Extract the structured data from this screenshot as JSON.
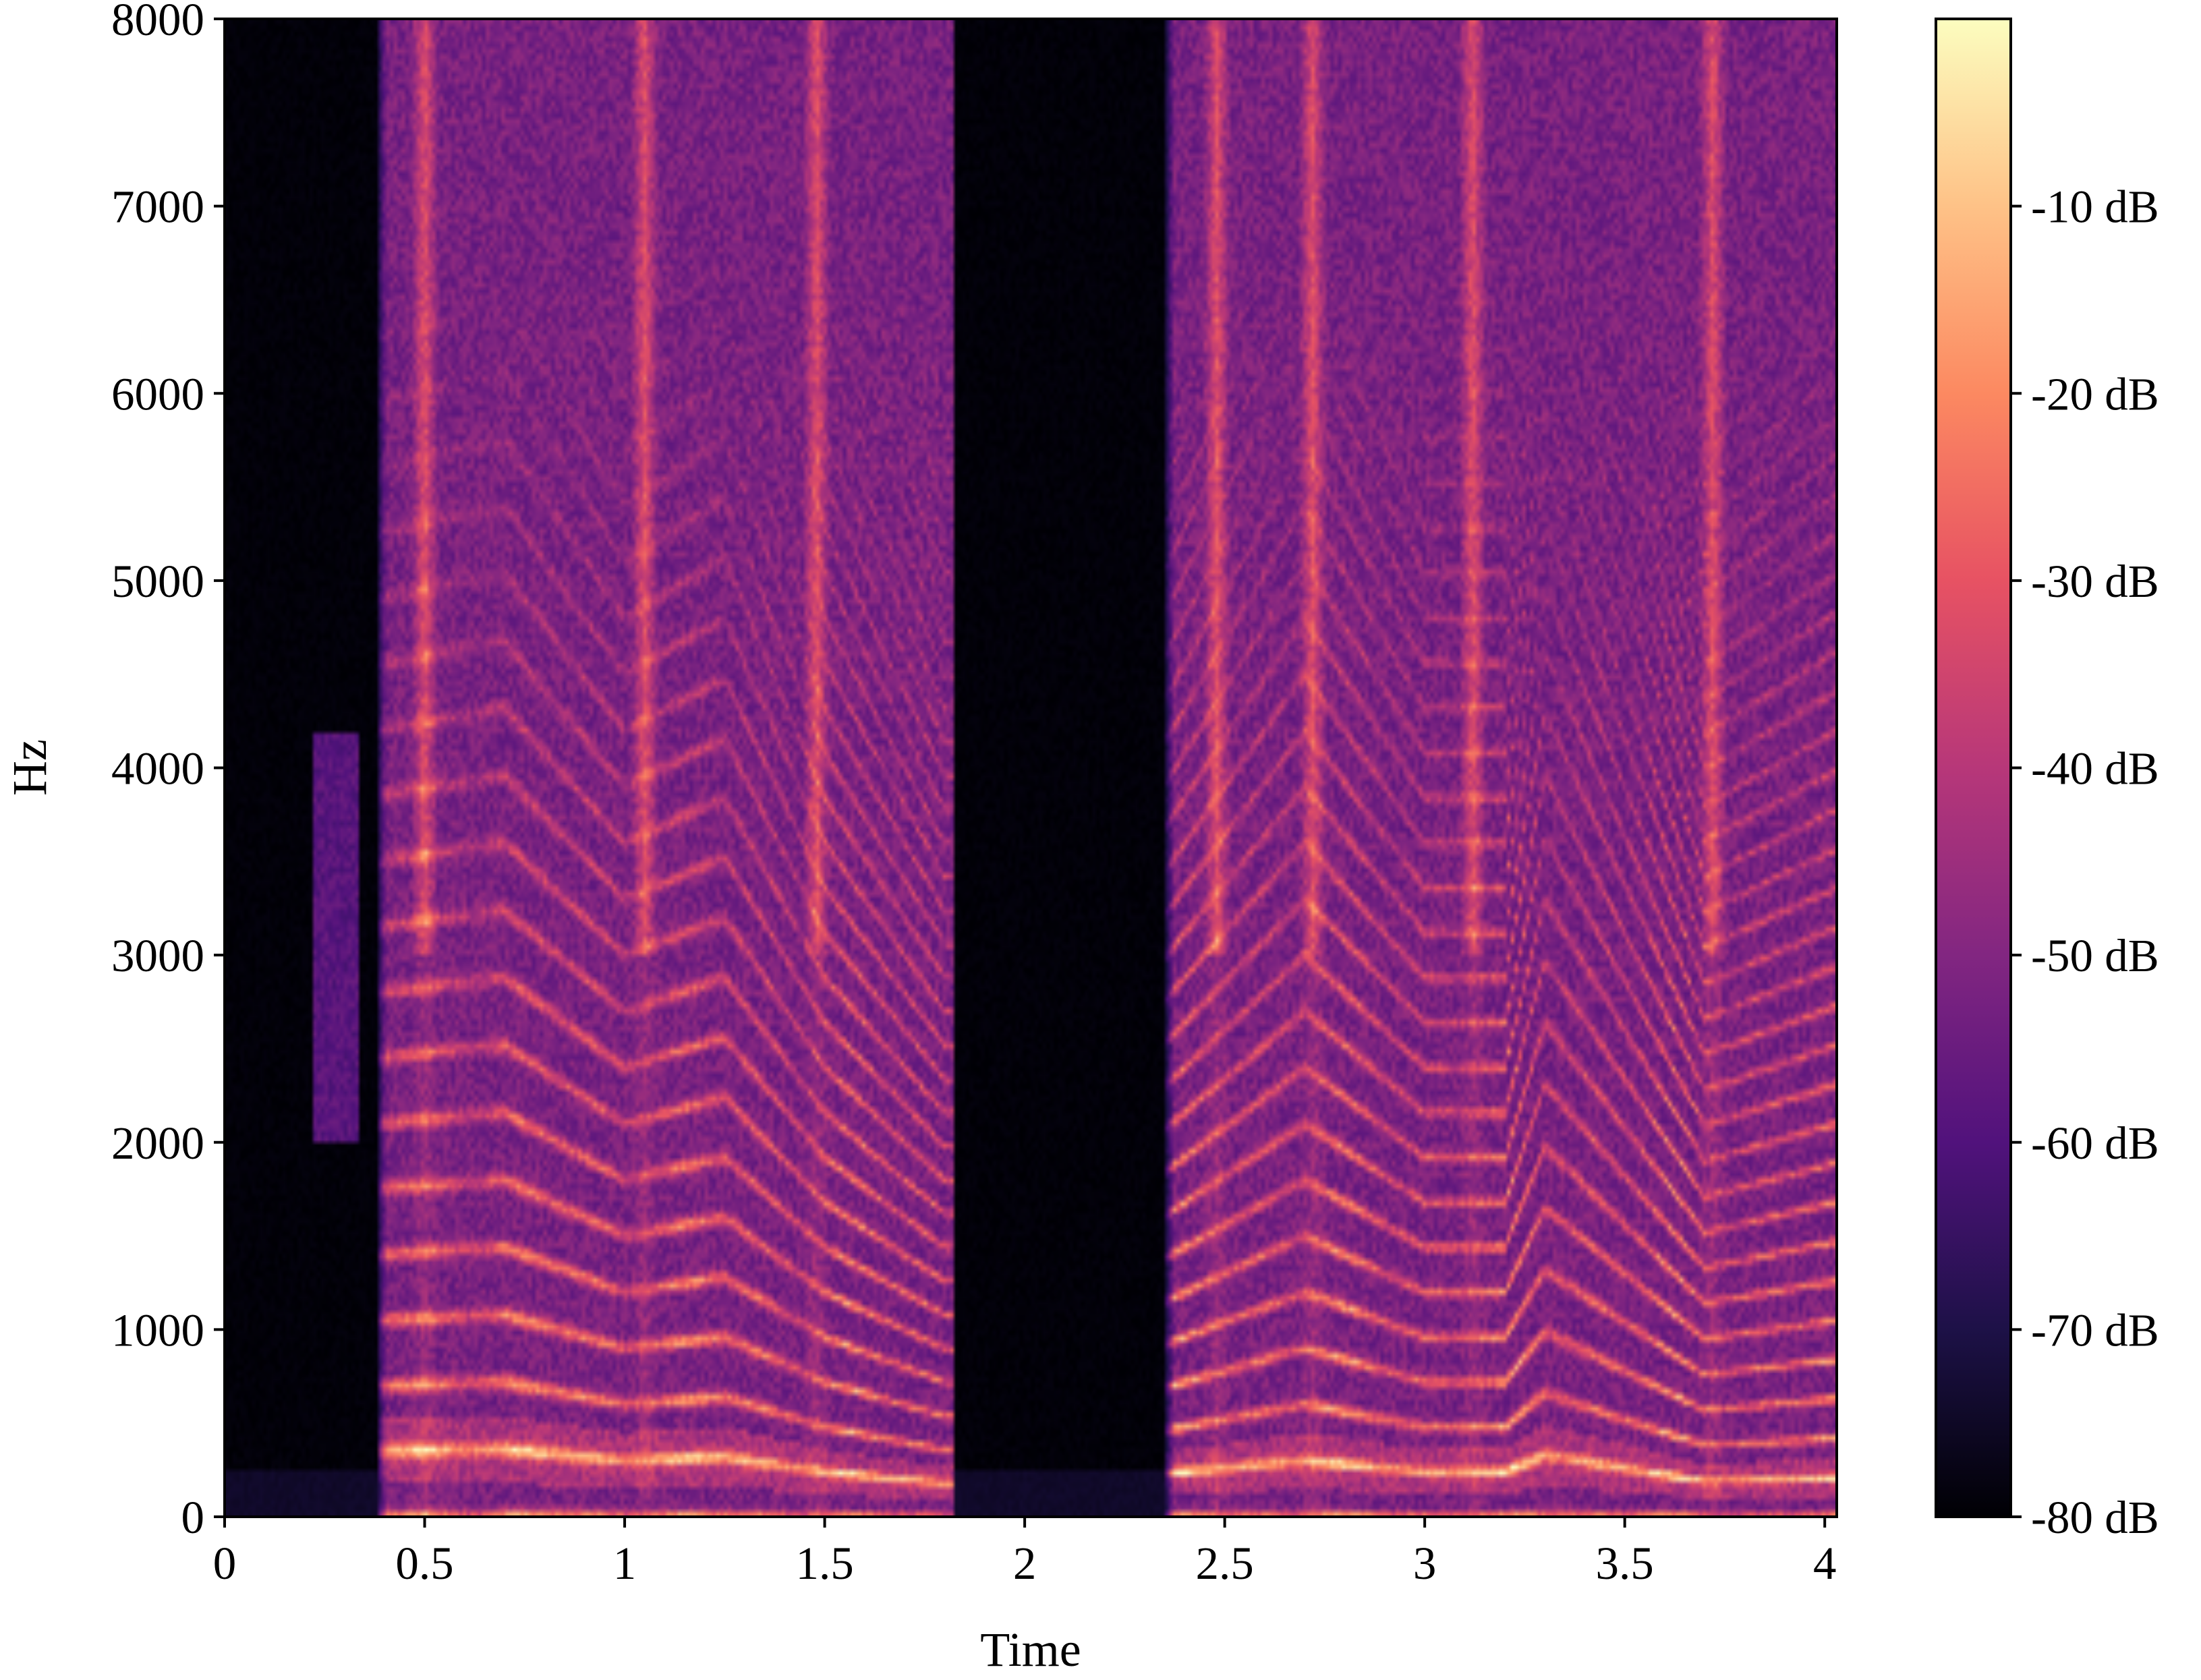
{
  "chart_data": {
    "type": "heatmap",
    "subtype": "spectrogram",
    "colormap": "magma",
    "colormap_stops": [
      "#000004",
      "#1d1147",
      "#51127c",
      "#822681",
      "#b73779",
      "#e75263",
      "#fc8961",
      "#fec287",
      "#fcfdbf"
    ],
    "title": "",
    "xlabel": "Time",
    "ylabel": "Hz",
    "xlim": [
      0,
      4.03
    ],
    "ylim": [
      0,
      8000
    ],
    "x_ticks": [
      0,
      0.5,
      1,
      1.5,
      2,
      2.5,
      3,
      3.5,
      4
    ],
    "x_tick_labels": [
      "0",
      "0.5",
      "1",
      "1.5",
      "2",
      "2.5",
      "3",
      "3.5",
      "4"
    ],
    "y_ticks": [
      0,
      1000,
      2000,
      3000,
      4000,
      5000,
      6000,
      7000,
      8000
    ],
    "y_tick_labels": [
      "0",
      "1000",
      "2000",
      "3000",
      "4000",
      "5000",
      "6000",
      "7000",
      "8000"
    ],
    "colorbar": {
      "range": [
        -80,
        0
      ],
      "ticks": [
        -10,
        -20,
        -30,
        -40,
        -50,
        -60,
        -70,
        -80
      ],
      "tick_labels": [
        "-10 dB",
        "-20 dB",
        "-30 dB",
        "-40 dB",
        "-50 dB",
        "-60 dB",
        "-70 dB",
        "-80 dB"
      ]
    },
    "voiced_segments": [
      {
        "start": 0.38,
        "end": 1.82,
        "f0_hz": [
          [
            0.38,
            350
          ],
          [
            0.7,
            360
          ],
          [
            1.0,
            300
          ],
          [
            1.25,
            320
          ],
          [
            1.5,
            240
          ],
          [
            1.8,
            180
          ]
        ]
      },
      {
        "start": 2.35,
        "end": 4.03,
        "f0_hz": [
          [
            2.35,
            230
          ],
          [
            2.7,
            300
          ],
          [
            3.0,
            240
          ],
          [
            3.2,
            240
          ],
          [
            3.3,
            330
          ],
          [
            3.7,
            190
          ],
          [
            4.03,
            210
          ]
        ]
      }
    ]
  }
}
